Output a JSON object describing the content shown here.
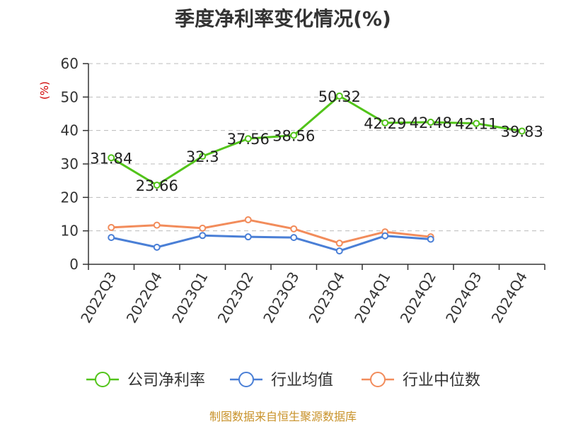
{
  "chart_data": {
    "type": "line",
    "title": "季度净利率变化情况(%)",
    "unit_label": "(%)",
    "categories": [
      "2022Q3",
      "2022Q4",
      "2023Q1",
      "2023Q2",
      "2023Q3",
      "2023Q4",
      "2024Q1",
      "2024Q2",
      "2024Q3",
      "2024Q4"
    ],
    "ylim": [
      0,
      60
    ],
    "yticks": [
      0,
      10,
      20,
      30,
      40,
      50,
      60
    ],
    "grid": true,
    "legend_position": "bottom",
    "series": [
      {
        "name": "公司净利率",
        "color": "#52c41a",
        "show_labels": true,
        "values": [
          31.84,
          23.66,
          32.3,
          37.56,
          38.56,
          50.32,
          42.29,
          42.48,
          42.11,
          39.83
        ]
      },
      {
        "name": "行业均值",
        "color": "#4a7fd6",
        "show_labels": false,
        "values": [
          8.0,
          5.1,
          8.6,
          8.2,
          8.0,
          4.0,
          8.5,
          7.5,
          null,
          null
        ]
      },
      {
        "name": "行业中位数",
        "color": "#f28c5b",
        "show_labels": false,
        "values": [
          11.0,
          11.7,
          10.8,
          13.3,
          10.6,
          6.3,
          9.7,
          8.2,
          null,
          null
        ]
      }
    ]
  },
  "source": "制图数据来自恒生聚源数据库"
}
